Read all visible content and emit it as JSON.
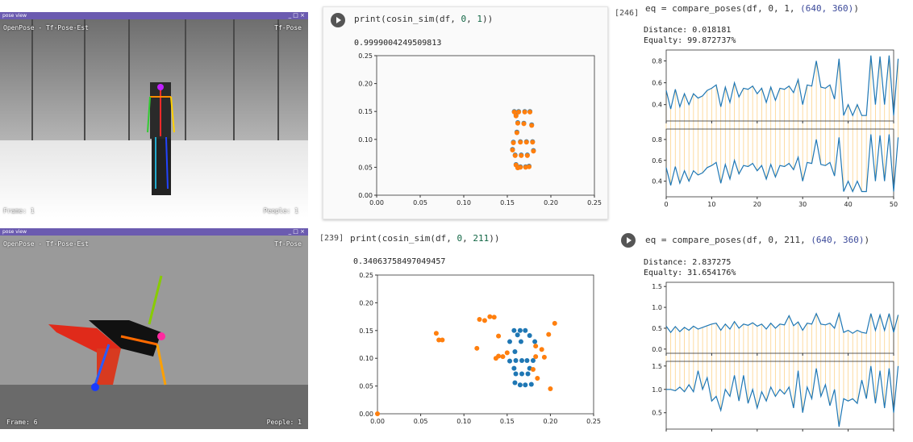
{
  "window_top": {
    "title": "pose view",
    "controls": "_ □ ×",
    "overlay_tl": "OpenPose - Tf-Pose-Est",
    "overlay_tr": "Tf-Pose",
    "overlay_bl": "Frame: 1",
    "overlay_br": "People: 1"
  },
  "window_bottom": {
    "title": "pose view",
    "controls": "_ □ ×",
    "overlay_tl": "OpenPose - Tf-Pose-Est",
    "overlay_tr": "Tf-Pose",
    "overlay_bl": "Frame: 6",
    "overlay_br": "People: 1"
  },
  "cell_a": {
    "code_prefix": "print(cosin_sim(df, ",
    "arg1": "0",
    "sep": ", ",
    "arg2": "1",
    "code_suffix": "))",
    "output": "0.9999004249509813"
  },
  "cell_b": {
    "label": "[239]",
    "code_prefix": "print(cosin_sim(df, ",
    "arg1": "0",
    "sep": ", ",
    "arg2": "211",
    "code_suffix": "))",
    "output": "0.34063758497049457"
  },
  "cell_c": {
    "label": "[246]",
    "code_prefix": "eq = compare_poses(df, ",
    "args": "0, 1, ",
    "tuple": "(640, 360)",
    "code_suffix": ")",
    "distance": "Distance: 0.018181",
    "equality": "Equalty:  99.872737%"
  },
  "cell_d": {
    "code_prefix": "eq = compare_poses(df, ",
    "args": "0, 211, ",
    "tuple": "(640, 360)",
    "code_suffix": ")",
    "distance": "Distance: 2.837275",
    "equality": "Equalty:  31.654176%"
  },
  "colors": {
    "blue": "#1f77b4",
    "orange": "#ff7f0e",
    "link": "#fcd28a"
  },
  "chart_data": [
    {
      "type": "scatter",
      "xlim": [
        0,
        0.25
      ],
      "ylim": [
        0,
        0.25
      ],
      "xticks": [
        "0.00",
        "0.05",
        "0.10",
        "0.15",
        "0.20",
        "0.25"
      ],
      "yticks": [
        "0.00",
        "0.05",
        "0.10",
        "0.15",
        "0.20",
        "0.25"
      ],
      "series": [
        {
          "points": [
            [
              0.158,
              0.15
            ],
            [
              0.163,
              0.15
            ],
            [
              0.16,
              0.143
            ],
            [
              0.17,
              0.15
            ],
            [
              0.176,
              0.15
            ],
            [
              0.162,
              0.13
            ],
            [
              0.169,
              0.129
            ],
            [
              0.178,
              0.126
            ],
            [
              0.161,
              0.113
            ],
            [
              0.157,
              0.095
            ],
            [
              0.165,
              0.096
            ],
            [
              0.172,
              0.096
            ],
            [
              0.179,
              0.096
            ],
            [
              0.156,
              0.082
            ],
            [
              0.18,
              0.08
            ],
            [
              0.159,
              0.072
            ],
            [
              0.166,
              0.072
            ],
            [
              0.173,
              0.072
            ],
            [
              0.16,
              0.055
            ],
            [
              0.165,
              0.051
            ],
            [
              0.171,
              0.051
            ],
            [
              0.175,
              0.052
            ],
            [
              0.162,
              0.05
            ]
          ]
        },
        {
          "points": [
            [
              0.158,
              0.149
            ],
            [
              0.163,
              0.149
            ],
            [
              0.16,
              0.142
            ],
            [
              0.17,
              0.149
            ],
            [
              0.176,
              0.149
            ],
            [
              0.162,
              0.129
            ],
            [
              0.169,
              0.128
            ],
            [
              0.178,
              0.125
            ],
            [
              0.161,
              0.112
            ],
            [
              0.157,
              0.094
            ],
            [
              0.165,
              0.095
            ],
            [
              0.172,
              0.095
            ],
            [
              0.179,
              0.095
            ],
            [
              0.156,
              0.081
            ],
            [
              0.18,
              0.079
            ],
            [
              0.159,
              0.071
            ],
            [
              0.166,
              0.071
            ],
            [
              0.173,
              0.071
            ],
            [
              0.16,
              0.054
            ],
            [
              0.165,
              0.05
            ],
            [
              0.171,
              0.05
            ],
            [
              0.175,
              0.051
            ],
            [
              0.162,
              0.049
            ]
          ]
        }
      ]
    },
    {
      "type": "scatter",
      "xlim": [
        0,
        0.25
      ],
      "ylim": [
        0,
        0.25
      ],
      "xticks": [
        "0.00",
        "0.05",
        "0.10",
        "0.15",
        "0.20",
        "0.25"
      ],
      "yticks": [
        "0.00",
        "0.05",
        "0.10",
        "0.15",
        "0.20",
        "0.25"
      ],
      "series": [
        {
          "points": [
            [
              0.158,
              0.15
            ],
            [
              0.165,
              0.15
            ],
            [
              0.171,
              0.15
            ],
            [
              0.162,
              0.142
            ],
            [
              0.176,
              0.141
            ],
            [
              0.153,
              0.13
            ],
            [
              0.166,
              0.13
            ],
            [
              0.182,
              0.13
            ],
            [
              0.159,
              0.112
            ],
            [
              0.153,
              0.095
            ],
            [
              0.16,
              0.096
            ],
            [
              0.167,
              0.096
            ],
            [
              0.173,
              0.096
            ],
            [
              0.18,
              0.096
            ],
            [
              0.158,
              0.082
            ],
            [
              0.176,
              0.082
            ],
            [
              0.16,
              0.072
            ],
            [
              0.167,
              0.072
            ],
            [
              0.174,
              0.072
            ],
            [
              0.159,
              0.056
            ],
            [
              0.165,
              0.052
            ],
            [
              0.171,
              0.052
            ],
            [
              0.178,
              0.053
            ]
          ]
        },
        {
          "points": [
            [
              0.068,
              0.145
            ],
            [
              0.071,
              0.133
            ],
            [
              0.075,
              0.133
            ],
            [
              0.118,
              0.17
            ],
            [
              0.124,
              0.168
            ],
            [
              0.13,
              0.175
            ],
            [
              0.135,
              0.174
            ],
            [
              0.115,
              0.118
            ],
            [
              0.14,
              0.14
            ],
            [
              0.15,
              0.11
            ],
            [
              0.145,
              0.103
            ],
            [
              0.205,
              0.163
            ],
            [
              0.198,
              0.143
            ],
            [
              0.183,
              0.122
            ],
            [
              0.19,
              0.116
            ],
            [
              0.193,
              0.102
            ],
            [
              0.183,
              0.103
            ],
            [
              0.18,
              0.08
            ],
            [
              0.185,
              0.064
            ],
            [
              0.2,
              0.045
            ],
            [
              0.0,
              0.0
            ],
            [
              0.14,
              0.104
            ],
            [
              0.137,
              0.1
            ]
          ]
        }
      ]
    },
    {
      "type": "line",
      "xlim": [
        0,
        50
      ],
      "xticks": [
        "0",
        "10",
        "20",
        "30",
        "40",
        "50"
      ],
      "panels": [
        {
          "ylim": [
            0.25,
            0.9
          ],
          "yticks": [
            "0.4",
            "0.6",
            "0.8"
          ],
          "values": [
            0.53,
            0.36,
            0.54,
            0.38,
            0.5,
            0.4,
            0.5,
            0.46,
            0.48,
            0.53,
            0.55,
            0.58,
            0.38,
            0.56,
            0.42,
            0.6,
            0.47,
            0.55,
            0.54,
            0.57,
            0.5,
            0.55,
            0.42,
            0.56,
            0.44,
            0.55,
            0.54,
            0.57,
            0.51,
            0.63,
            0.4,
            0.58,
            0.57,
            0.8,
            0.56,
            0.55,
            0.58,
            0.45,
            0.82,
            0.3,
            0.4,
            0.3,
            0.4,
            0.3,
            0.3,
            0.85,
            0.4,
            0.84,
            0.4,
            0.85,
            0.3,
            0.82
          ]
        },
        {
          "ylim": [
            0.25,
            0.9
          ],
          "yticks": [
            "0.4",
            "0.6",
            "0.8"
          ],
          "values": [
            0.53,
            0.36,
            0.54,
            0.38,
            0.5,
            0.4,
            0.5,
            0.46,
            0.48,
            0.53,
            0.55,
            0.58,
            0.38,
            0.56,
            0.42,
            0.6,
            0.47,
            0.55,
            0.54,
            0.57,
            0.5,
            0.55,
            0.42,
            0.56,
            0.44,
            0.55,
            0.54,
            0.57,
            0.51,
            0.63,
            0.4,
            0.58,
            0.57,
            0.8,
            0.56,
            0.55,
            0.58,
            0.45,
            0.82,
            0.3,
            0.4,
            0.3,
            0.4,
            0.3,
            0.3,
            0.85,
            0.4,
            0.84,
            0.4,
            0.85,
            0.3,
            0.82
          ]
        }
      ]
    },
    {
      "type": "line",
      "xlim": [
        0,
        50
      ],
      "panels": [
        {
          "ylim": [
            -0.1,
            1.6
          ],
          "yticks": [
            "0.0",
            "0.5",
            "1.0",
            "1.5"
          ],
          "values": [
            0.55,
            0.4,
            0.54,
            0.42,
            0.52,
            0.45,
            0.55,
            0.48,
            0.52,
            0.56,
            0.6,
            0.62,
            0.45,
            0.6,
            0.48,
            0.66,
            0.5,
            0.6,
            0.57,
            0.63,
            0.55,
            0.6,
            0.48,
            0.62,
            0.5,
            0.6,
            0.58,
            0.8,
            0.56,
            0.65,
            0.45,
            0.62,
            0.6,
            0.85,
            0.6,
            0.58,
            0.62,
            0.5,
            0.85,
            0.4,
            0.45,
            0.38,
            0.45,
            0.4,
            0.38,
            0.85,
            0.45,
            0.82,
            0.45,
            0.85,
            0.4,
            0.82
          ]
        },
        {
          "ylim": [
            0.15,
            1.6
          ],
          "yticks": [
            "0.5",
            "1.0",
            "1.5"
          ],
          "values": [
            1.0,
            1.0,
            0.97,
            1.05,
            0.95,
            1.1,
            0.95,
            1.4,
            1.0,
            1.25,
            0.75,
            0.85,
            0.55,
            1.0,
            0.85,
            1.3,
            0.75,
            1.3,
            0.7,
            1.0,
            0.6,
            0.95,
            0.75,
            1.05,
            0.85,
            1.0,
            0.9,
            1.05,
            0.6,
            1.4,
            0.5,
            1.05,
            0.8,
            1.45,
            0.85,
            1.1,
            0.65,
            1.0,
            0.2,
            0.8,
            0.75,
            0.8,
            0.7,
            1.2,
            0.8,
            1.5,
            0.7,
            1.4,
            0.6,
            1.45,
            0.5,
            1.5
          ]
        }
      ]
    }
  ]
}
